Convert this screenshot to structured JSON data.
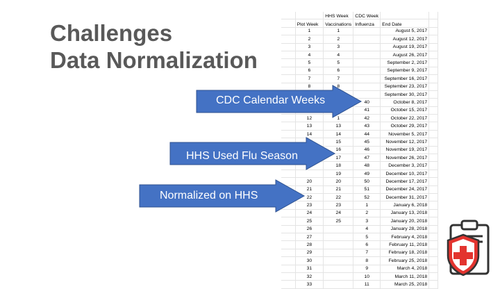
{
  "slide": {
    "title_line1": "Challenges",
    "title_line2": "Data Normalization"
  },
  "colors": {
    "title": "#595959",
    "arrow_fill": "#4472c4",
    "arrow_stroke": "#2f528f",
    "icon_red": "#e3342f"
  },
  "sheet": {
    "headers": {
      "hhs_week_line1": "HHS Week",
      "cdc_week_line1": "CDC Week",
      "plot_week": "Plot Week",
      "vaccinations": "Vaccinations",
      "influenza": "Influenza",
      "end_date": "End Date"
    },
    "rows": [
      {
        "plot": "1",
        "hhs": "1",
        "cdc": "",
        "date": "August 5, 2017"
      },
      {
        "plot": "2",
        "hhs": "2",
        "cdc": "",
        "date": "August 12, 2017"
      },
      {
        "plot": "3",
        "hhs": "3",
        "cdc": "",
        "date": "August 19, 2017"
      },
      {
        "plot": "4",
        "hhs": "4",
        "cdc": "",
        "date": "August 26, 2017"
      },
      {
        "plot": "5",
        "hhs": "5",
        "cdc": "",
        "date": "September 2, 2017"
      },
      {
        "plot": "6",
        "hhs": "6",
        "cdc": "",
        "date": "September 9, 2017"
      },
      {
        "plot": "7",
        "hhs": "7",
        "cdc": "",
        "date": "September 16, 2017"
      },
      {
        "plot": "8",
        "hhs": "8",
        "cdc": "",
        "date": "September 23, 2017"
      },
      {
        "plot": "",
        "hhs": "",
        "cdc": "",
        "date": "September 30, 2017"
      },
      {
        "plot": "",
        "hhs": "",
        "cdc": "40",
        "date": "October 8, 2017"
      },
      {
        "plot": "",
        "hhs": "",
        "cdc": "41",
        "date": "October 15, 2017"
      },
      {
        "plot": "12",
        "hhs": "1",
        "cdc": "42",
        "date": "October 22, 2017"
      },
      {
        "plot": "13",
        "hhs": "13",
        "cdc": "43",
        "date": "October 29, 2017"
      },
      {
        "plot": "14",
        "hhs": "14",
        "cdc": "44",
        "date": "November 5, 2017"
      },
      {
        "plot": "15",
        "hhs": "15",
        "cdc": "45",
        "date": "November 12, 2017"
      },
      {
        "plot": "16",
        "hhs": "16",
        "cdc": "46",
        "date": "November 19, 2017"
      },
      {
        "plot": "",
        "hhs": "17",
        "cdc": "47",
        "date": "November 26, 2017"
      },
      {
        "plot": "",
        "hhs": "18",
        "cdc": "48",
        "date": "December 3, 2017"
      },
      {
        "plot": "",
        "hhs": "19",
        "cdc": "49",
        "date": "December 10, 2017"
      },
      {
        "plot": "20",
        "hhs": "20",
        "cdc": "50",
        "date": "December 17, 2017"
      },
      {
        "plot": "21",
        "hhs": "21",
        "cdc": "51",
        "date": "December 24, 2017"
      },
      {
        "plot": "22",
        "hhs": "22",
        "cdc": "52",
        "date": "December 31, 2017"
      },
      {
        "plot": "23",
        "hhs": "23",
        "cdc": "1",
        "date": "January 6, 2018"
      },
      {
        "plot": "24",
        "hhs": "24",
        "cdc": "2",
        "date": "January 13, 2018"
      },
      {
        "plot": "25",
        "hhs": "25",
        "cdc": "3",
        "date": "January 20, 2018"
      },
      {
        "plot": "26",
        "hhs": "",
        "cdc": "4",
        "date": "January 28, 2018"
      },
      {
        "plot": "27",
        "hhs": "",
        "cdc": "5",
        "date": "February 4, 2018"
      },
      {
        "plot": "28",
        "hhs": "",
        "cdc": "6",
        "date": "February 11, 2018"
      },
      {
        "plot": "29",
        "hhs": "",
        "cdc": "7",
        "date": "February 18, 2018"
      },
      {
        "plot": "30",
        "hhs": "",
        "cdc": "8",
        "date": "February 25, 2018"
      },
      {
        "plot": "31",
        "hhs": "",
        "cdc": "9",
        "date": "March 4, 2018"
      },
      {
        "plot": "32",
        "hhs": "",
        "cdc": "10",
        "date": "March 11, 2018"
      },
      {
        "plot": "33",
        "hhs": "",
        "cdc": "11",
        "date": "March 25, 2018"
      }
    ]
  },
  "callouts": [
    {
      "label": "CDC Calendar Weeks"
    },
    {
      "label": "HHS Used Flu Season"
    },
    {
      "label": "Normalized on HHS"
    }
  ],
  "icons": {
    "corner": "medical-clipboard-icon"
  }
}
